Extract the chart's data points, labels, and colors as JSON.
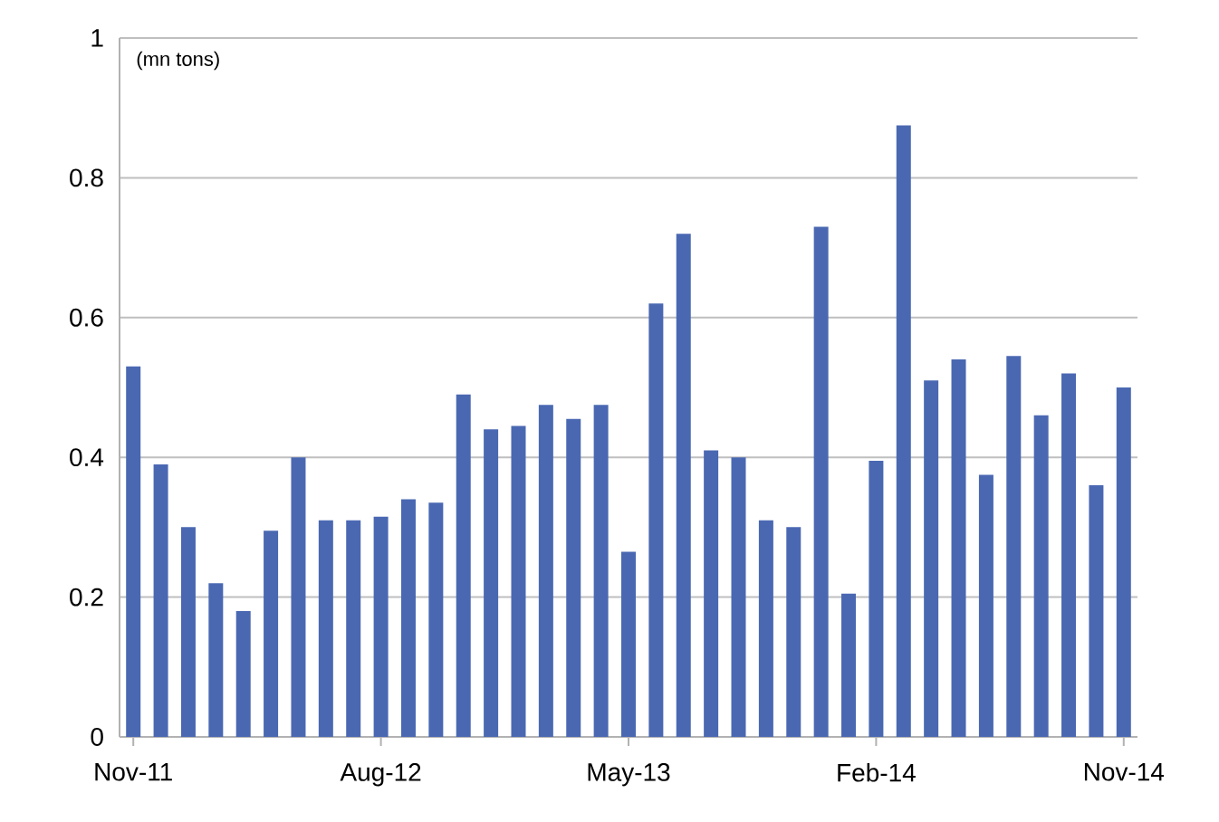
{
  "chart_data": {
    "type": "bar",
    "categories": [
      "Nov-11",
      null,
      null,
      null,
      null,
      null,
      null,
      null,
      null,
      "Aug-12",
      null,
      null,
      null,
      null,
      null,
      null,
      null,
      null,
      "May-13",
      null,
      null,
      null,
      null,
      null,
      null,
      null,
      null,
      "Feb-14",
      null,
      null,
      null,
      null,
      null,
      null,
      null,
      null,
      "Nov-14"
    ],
    "values": [
      0.53,
      0.39,
      0.3,
      0.22,
      0.18,
      0.295,
      0.4,
      0.31,
      0.31,
      0.315,
      0.34,
      0.335,
      0.49,
      0.44,
      0.445,
      0.475,
      0.455,
      0.475,
      0.265,
      0.62,
      0.72,
      0.41,
      0.4,
      0.31,
      0.3,
      0.73,
      0.205,
      0.395,
      0.875,
      0.51,
      0.54,
      0.375,
      0.545,
      0.46,
      0.52,
      0.36,
      0.5
    ],
    "color": "#4a68b2",
    "ylim": [
      0,
      1
    ],
    "yticks": [
      0,
      0.2,
      0.4,
      0.6,
      0.8,
      1
    ],
    "grid": "y",
    "annotations": [
      "(mn tons)"
    ]
  }
}
